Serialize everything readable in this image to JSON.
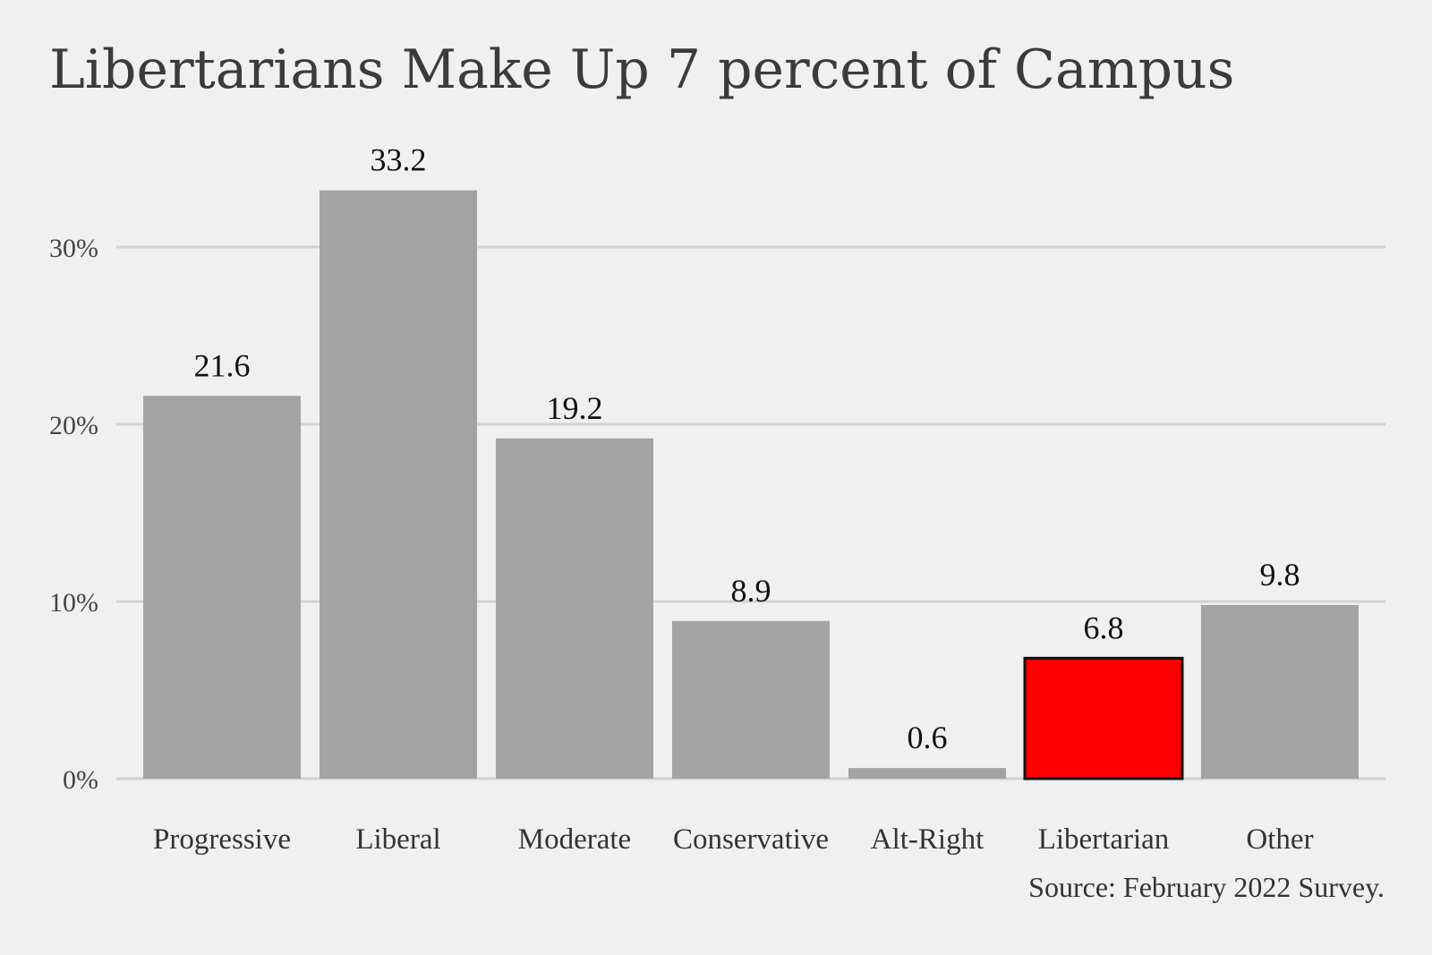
{
  "chart_data": {
    "type": "bar",
    "title": "Libertarians Make Up 7 percent of Campus",
    "categories": [
      "Progressive",
      "Liberal",
      "Moderate",
      "Conservative",
      "Alt-Right",
      "Libertarian",
      "Other"
    ],
    "values": [
      21.6,
      33.2,
      19.2,
      8.9,
      0.6,
      6.8,
      9.8
    ],
    "value_labels": [
      "21.6",
      "33.2",
      "19.2",
      "8.9",
      "0.6",
      "6.8",
      "9.8"
    ],
    "highlight_index": 5,
    "yticks": [
      0,
      10,
      20,
      30
    ],
    "ytick_labels": [
      "0%",
      "10%",
      "20%",
      "30%"
    ],
    "ylim": [
      0,
      36.5
    ],
    "xlabel": "",
    "ylabel": "",
    "grid": true,
    "source": "Source: February 2022 Survey.",
    "colors": {
      "background": "#f0f0f0",
      "bar": "#a3a3a3",
      "highlight": "#ff0000",
      "highlight_stroke": "#111111",
      "grid": "#d2d2d2"
    }
  }
}
